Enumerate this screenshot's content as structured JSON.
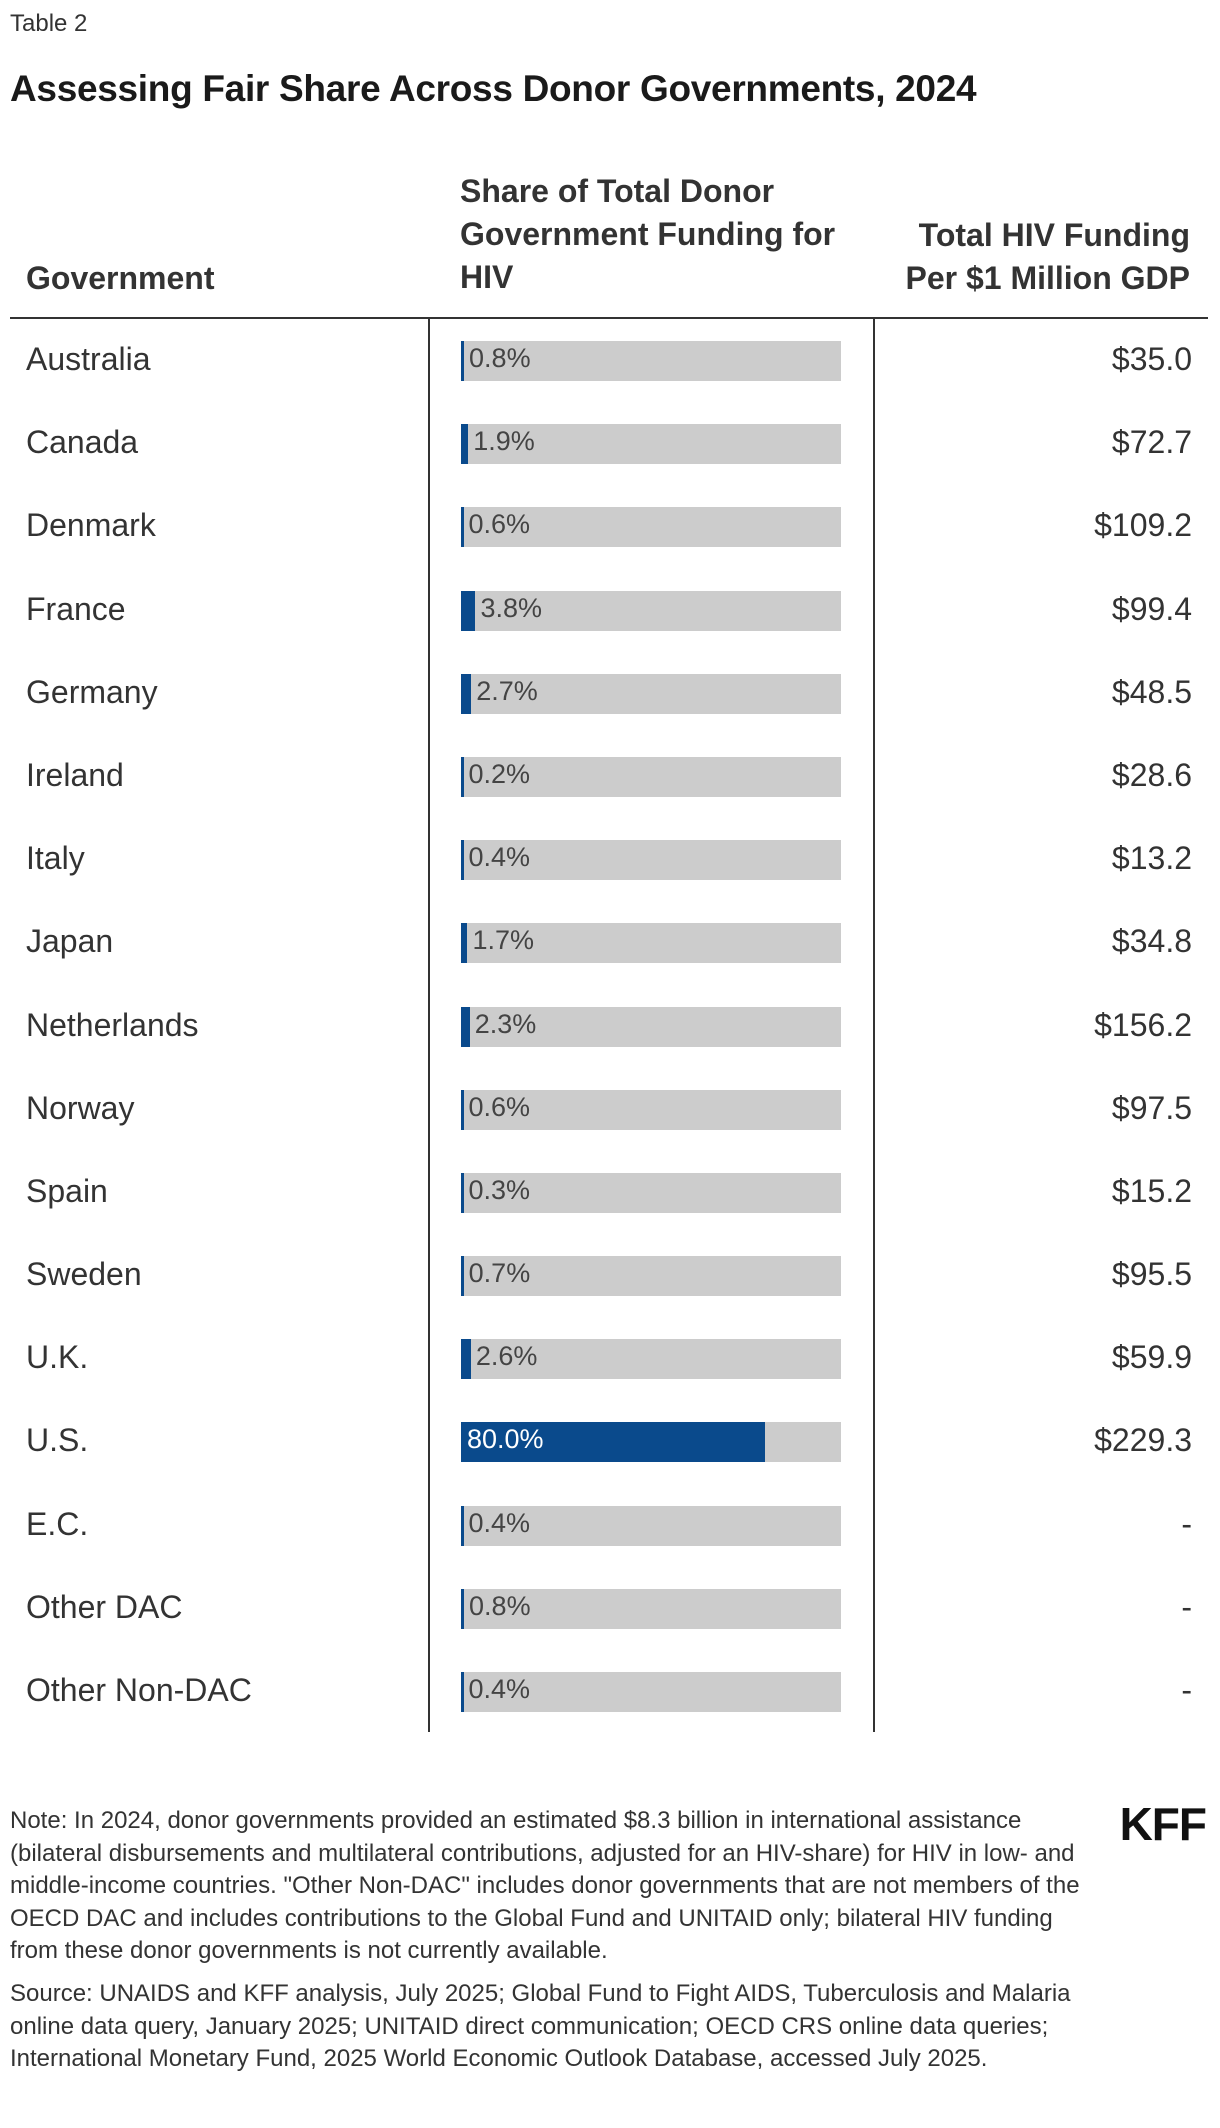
{
  "eyebrow": "Table 2",
  "title": "Assessing Fair Share Across Donor Governments, 2024",
  "columns": {
    "government": "Government",
    "share_lines": [
      "Share of Total Donor",
      "Government Funding for",
      "HIV"
    ],
    "total_lines": [
      "Total HIV Funding",
      "Per $1 Million GDP"
    ]
  },
  "chart_data": {
    "type": "table",
    "title": "Assessing Fair Share Across Donor Governments, 2024",
    "columns": [
      "Government",
      "Share of Total Donor Government Funding for HIV",
      "Total HIV Funding Per $1 Million GDP"
    ],
    "bar_max": 100,
    "rows": [
      {
        "government": "Australia",
        "share": 0.8,
        "share_label": "0.8%",
        "total": "$35.0"
      },
      {
        "government": "Canada",
        "share": 1.9,
        "share_label": "1.9%",
        "total": "$72.7"
      },
      {
        "government": "Denmark",
        "share": 0.6,
        "share_label": "0.6%",
        "total": "$109.2"
      },
      {
        "government": "France",
        "share": 3.8,
        "share_label": "3.8%",
        "total": "$99.4"
      },
      {
        "government": "Germany",
        "share": 2.7,
        "share_label": "2.7%",
        "total": "$48.5"
      },
      {
        "government": "Ireland",
        "share": 0.2,
        "share_label": "0.2%",
        "total": "$28.6"
      },
      {
        "government": "Italy",
        "share": 0.4,
        "share_label": "0.4%",
        "total": "$13.2"
      },
      {
        "government": "Japan",
        "share": 1.7,
        "share_label": "1.7%",
        "total": "$34.8"
      },
      {
        "government": "Netherlands",
        "share": 2.3,
        "share_label": "2.3%",
        "total": "$156.2"
      },
      {
        "government": "Norway",
        "share": 0.6,
        "share_label": "0.6%",
        "total": "$97.5"
      },
      {
        "government": "Spain",
        "share": 0.3,
        "share_label": "0.3%",
        "total": "$15.2"
      },
      {
        "government": "Sweden",
        "share": 0.7,
        "share_label": "0.7%",
        "total": "$95.5"
      },
      {
        "government": "U.K.",
        "share": 2.6,
        "share_label": "2.6%",
        "total": "$59.9"
      },
      {
        "government": "U.S.",
        "share": 80.0,
        "share_label": "80.0%",
        "total": "$229.3"
      },
      {
        "government": "E.C.",
        "share": 0.4,
        "share_label": "0.4%",
        "total": "-"
      },
      {
        "government": "Other DAC",
        "share": 0.8,
        "share_label": "0.8%",
        "total": "-"
      },
      {
        "government": "Other Non-DAC",
        "share": 0.4,
        "share_label": "0.4%",
        "total": "-"
      }
    ]
  },
  "colors": {
    "bar": "#0a4a8c",
    "track": "#cccccc"
  },
  "note": "Note: In 2024, donor governments provided an estimated $8.3 billion in international assistance (bilateral disbursements and multilateral contributions, adjusted for an HIV-share) for HIV in low- and middle-income countries. \"Other Non-DAC\" includes donor governments that are not members of the OECD DAC and includes contributions to the Global Fund and UNITAID only; bilateral HIV funding from these donor governments is not currently available.",
  "source": "Source: UNAIDS and KFF analysis, July 2025; Global Fund to Fight AIDS, Tuberculosis and Malaria online data query, January 2025; UNITAID direct communication; OECD CRS online data queries; International Monetary Fund, 2025 World Economic Outlook Database, accessed July 2025.",
  "logo": "KFF"
}
